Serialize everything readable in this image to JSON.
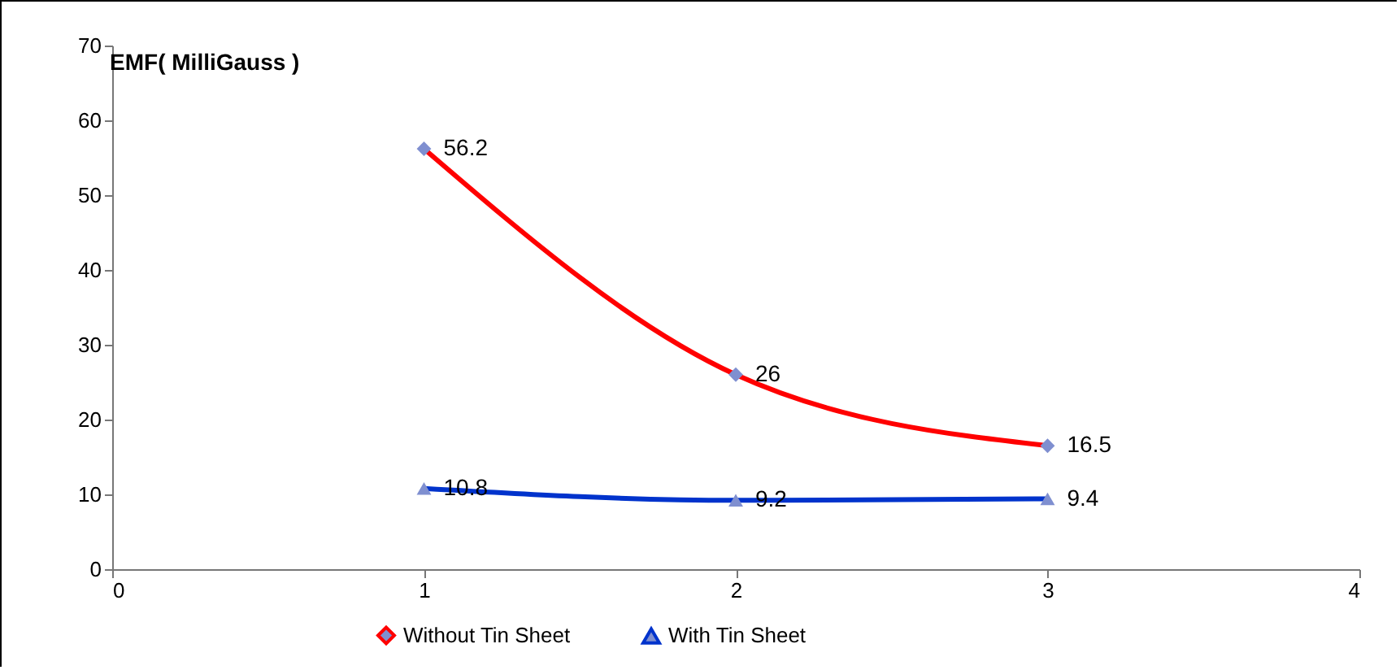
{
  "chart_data": {
    "type": "line",
    "title": "EMF( MilliGauss )",
    "x": [
      1,
      2,
      3
    ],
    "series": [
      {
        "name": "Without Tin Sheet",
        "color": "#ff0000",
        "values": [
          56.2,
          26,
          16.5
        ],
        "marker": "diamond"
      },
      {
        "name": "With Tin Sheet",
        "color": "#0033cc",
        "values": [
          10.8,
          9.2,
          9.4
        ],
        "marker": "triangle"
      }
    ],
    "xlim": [
      0,
      4
    ],
    "xticks": [
      0,
      1,
      2,
      3,
      4
    ],
    "ylim": [
      0,
      70
    ],
    "yticks": [
      0,
      10,
      20,
      30,
      40,
      50,
      60,
      70
    ],
    "data_labels": true,
    "legend": "bottom",
    "grid": false
  }
}
